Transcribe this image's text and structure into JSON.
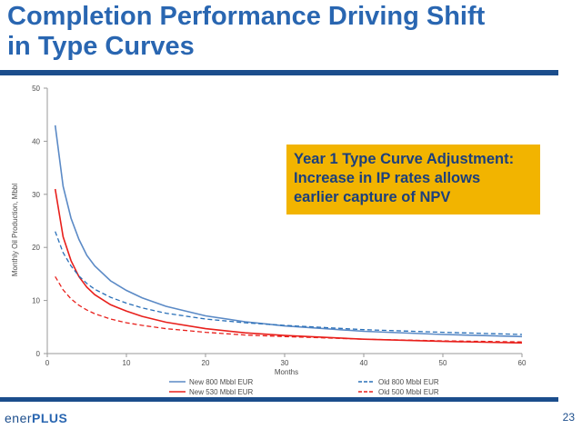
{
  "slide": {
    "title_line1": "Completion Performance Driving Shift",
    "title_line2": "in Type Curves",
    "page_number": "23"
  },
  "logo": {
    "part1": "ener",
    "part2": "PLUS",
    "colors": {
      "text": "#1b4d8c",
      "accent": "#2966b1"
    }
  },
  "callout": {
    "lines": [
      "Year 1 Type Curve Adjustment:",
      "Increase in IP rates allows",
      "earlier capture of NPV"
    ],
    "background": "#f2b400",
    "text_color": "#1b3f7d"
  },
  "chart_data": {
    "type": "line",
    "title": "",
    "xlabel": "Months",
    "ylabel": "Monthly Oil Production, Mbbl",
    "xlim": [
      0,
      60
    ],
    "ylim": [
      0,
      50
    ],
    "xticks": [
      0,
      10,
      20,
      30,
      40,
      50,
      60
    ],
    "yticks": [
      0,
      10,
      20,
      30,
      40,
      50
    ],
    "grid": false,
    "legend_position": "bottom",
    "series": [
      {
        "name": "New 800 Mbbl EUR",
        "color": "#5b8ac6",
        "dash": "solid",
        "x": [
          1,
          2,
          3,
          4,
          5,
          6,
          8,
          10,
          12,
          15,
          20,
          25,
          30,
          40,
          50,
          60
        ],
        "y": [
          43,
          31.5,
          25.5,
          21.5,
          18.5,
          16.5,
          13.7,
          11.9,
          10.5,
          8.9,
          7.1,
          6.0,
          5.2,
          4.2,
          3.6,
          3.2
        ]
      },
      {
        "name": "New 530 Mbbl EUR",
        "color": "#e8201c",
        "dash": "solid",
        "x": [
          1,
          2,
          3,
          4,
          5,
          6,
          8,
          10,
          12,
          15,
          20,
          25,
          30,
          40,
          50,
          60
        ],
        "y": [
          31,
          22,
          17.5,
          14.5,
          12.5,
          11.1,
          9.2,
          8.0,
          7.0,
          5.9,
          4.7,
          3.9,
          3.4,
          2.7,
          2.3,
          2.0
        ]
      },
      {
        "name": "Old 800 Mbbl EUR",
        "color": "#2a70b8",
        "dash": "dashed",
        "x": [
          1,
          2,
          3,
          4,
          5,
          6,
          8,
          10,
          12,
          15,
          20,
          25,
          30,
          40,
          50,
          60
        ],
        "y": [
          23,
          19,
          16.5,
          14.6,
          13.2,
          12.1,
          10.6,
          9.5,
          8.6,
          7.6,
          6.5,
          5.8,
          5.3,
          4.5,
          4.0,
          3.6
        ]
      },
      {
        "name": "Old 500 Mbbl EUR",
        "color": "#e8201c",
        "dash": "dashed",
        "x": [
          1,
          2,
          3,
          4,
          5,
          6,
          8,
          10,
          12,
          15,
          20,
          25,
          30,
          40,
          50,
          60
        ],
        "y": [
          14.5,
          12,
          10.3,
          9.1,
          8.2,
          7.5,
          6.5,
          5.8,
          5.3,
          4.7,
          4.0,
          3.5,
          3.2,
          2.7,
          2.4,
          2.2
        ]
      }
    ]
  }
}
